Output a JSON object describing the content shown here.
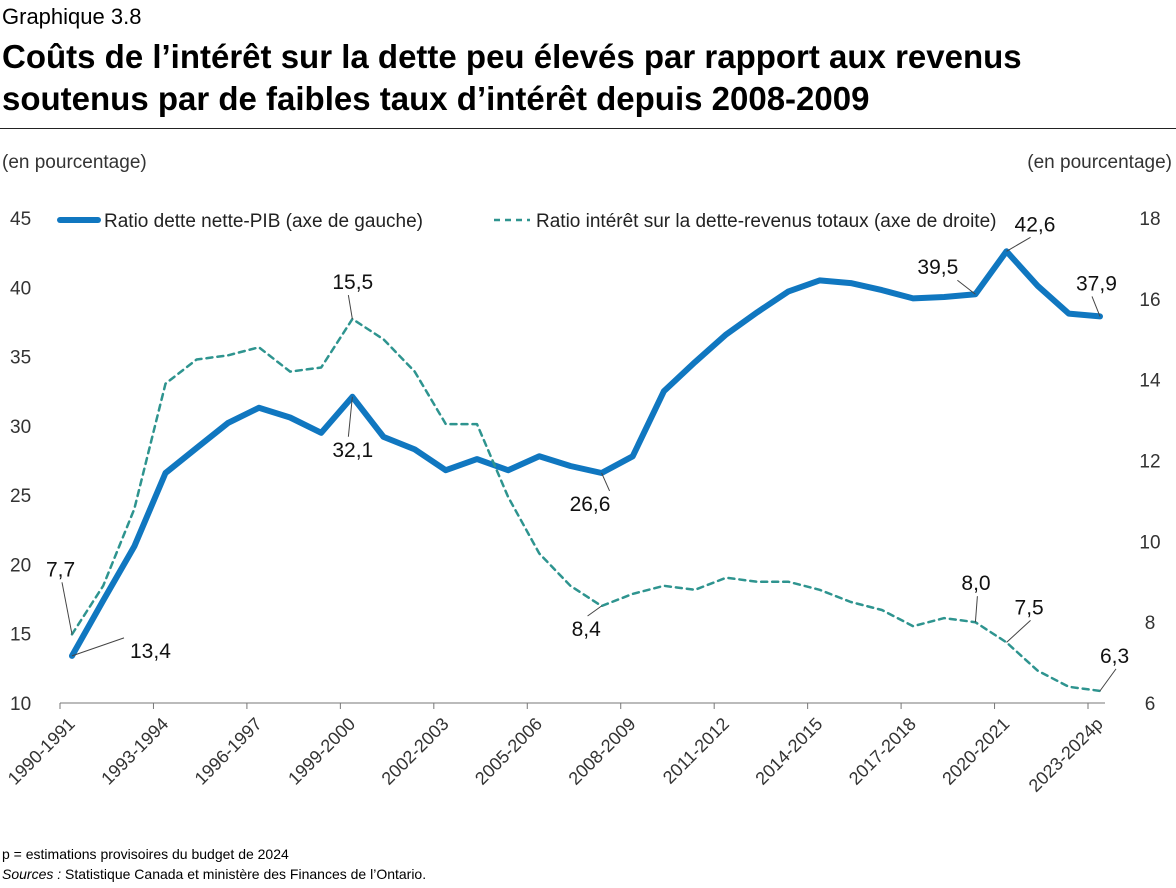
{
  "header": {
    "kicker": "Graphique 3.8",
    "title": "Coûts de l’intérêt sur la dette peu élevés par rapport aux revenus soutenus par de faibles taux d’intérêt depuis 2008-2009"
  },
  "axes": {
    "left_unit": "(en pourcentage)",
    "right_unit": "(en pourcentage)"
  },
  "footer": {
    "note_p": "p = estimations provisoires du budget de 2024",
    "sources_label": "Sources :",
    "sources_text": "Statistique Canada et ministère des Finances de l’Ontario."
  },
  "colors": {
    "debt": "#1077c0",
    "interest": "#2e948f"
  },
  "chart_data": {
    "type": "line",
    "title": "Coûts de l’intérêt sur la dette peu élevés par rapport aux revenus soutenus par de faibles taux d’intérêt depuis 2008-2009",
    "x_tick_labels": [
      "1990-1991",
      "1993-1994",
      "1996-1997",
      "1999-2000",
      "2002-2003",
      "2005-2006",
      "2008-2009",
      "2011-2012",
      "2014-2015",
      "2017-2018",
      "2020-2021",
      "2023-2024p"
    ],
    "categories": [
      "1990-1991",
      "1991-1992",
      "1992-1993",
      "1993-1994",
      "1994-1995",
      "1995-1996",
      "1996-1997",
      "1997-1998",
      "1998-1999",
      "1999-2000",
      "2000-2001",
      "2001-2002",
      "2002-2003",
      "2003-2004",
      "2004-2005",
      "2005-2006",
      "2006-2007",
      "2007-2008",
      "2008-2009",
      "2009-2010",
      "2010-2011",
      "2011-2012",
      "2012-2013",
      "2013-2014",
      "2014-2015",
      "2015-2016",
      "2016-2017",
      "2017-2018",
      "2018-2019",
      "2019-2020",
      "2020-2021",
      "2021-2022",
      "2022-2023",
      "2023-2024p"
    ],
    "y_left": {
      "min": 10,
      "max": 45,
      "ticks": [
        "10",
        "15",
        "20",
        "25",
        "30",
        "35",
        "40",
        "45"
      ]
    },
    "y_right": {
      "min": 6,
      "max": 18,
      "ticks": [
        "6",
        "8",
        "10",
        "12",
        "14",
        "16",
        "18"
      ]
    },
    "series": [
      {
        "name": "Ratio dette nette-PIB (axe de gauche)",
        "axis": "left",
        "style": "solid",
        "values": [
          13.4,
          17.4,
          21.3,
          26.6,
          28.4,
          30.2,
          31.3,
          30.6,
          29.5,
          32.1,
          29.2,
          28.3,
          26.8,
          27.6,
          26.8,
          27.8,
          27.1,
          26.6,
          27.8,
          32.5,
          34.6,
          36.6,
          38.2,
          39.7,
          40.5,
          40.3,
          39.8,
          39.2,
          39.3,
          39.5,
          42.6,
          40.1,
          38.1,
          37.9
        ]
      },
      {
        "name": "Ratio intérêt sur la dette-revenus totaux (axe de droite)",
        "axis": "right",
        "style": "dashed",
        "values": [
          7.7,
          8.9,
          10.8,
          13.9,
          14.5,
          14.6,
          14.8,
          14.2,
          14.3,
          15.5,
          15.0,
          14.2,
          12.9,
          12.9,
          11.1,
          9.7,
          8.9,
          8.4,
          8.7,
          8.9,
          8.8,
          9.1,
          9.0,
          9.0,
          8.8,
          8.5,
          8.3,
          7.9,
          8.1,
          8.0,
          7.5,
          6.8,
          6.4,
          6.3
        ]
      }
    ],
    "annotations": [
      {
        "label": "13,4",
        "series": 0,
        "index": 0
      },
      {
        "label": "7,7",
        "series": 1,
        "index": 0
      },
      {
        "label": "15,5",
        "series": 1,
        "index": 9
      },
      {
        "label": "32,1",
        "series": 0,
        "index": 9
      },
      {
        "label": "26,6",
        "series": 0,
        "index": 17
      },
      {
        "label": "8,4",
        "series": 1,
        "index": 17
      },
      {
        "label": "39,5",
        "series": 0,
        "index": 29
      },
      {
        "label": "42,6",
        "series": 0,
        "index": 30
      },
      {
        "label": "37,9",
        "series": 0,
        "index": 33
      },
      {
        "label": "8,0",
        "series": 1,
        "index": 29
      },
      {
        "label": "7,5",
        "series": 1,
        "index": 30
      },
      {
        "label": "6,3",
        "series": 1,
        "index": 33
      }
    ]
  }
}
